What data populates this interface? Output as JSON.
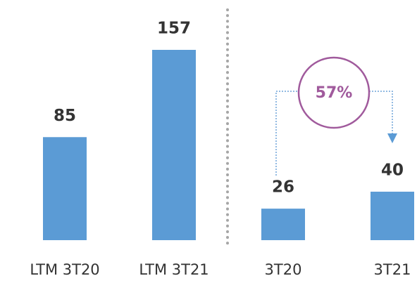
{
  "chart_data": {
    "type": "bar",
    "categories": [
      "LTM 3T20",
      "LTM 3T21",
      "3T20",
      "3T21"
    ],
    "values": [
      85,
      157,
      26,
      40
    ],
    "color": "#5b9bd5",
    "annotation": "57%"
  }
}
